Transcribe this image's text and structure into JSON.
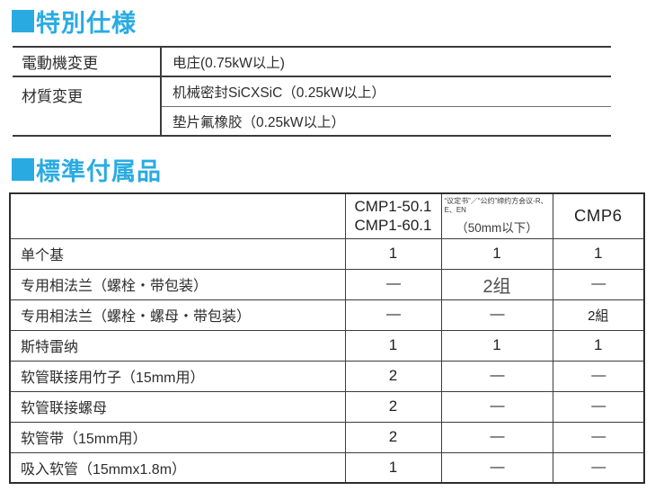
{
  "accent_color": "#29ABE2",
  "special": {
    "title": "特別仕様",
    "rows": [
      {
        "label": "電動機変更",
        "values": [
          "电庄(0.75kW以上)"
        ]
      },
      {
        "label": "材質変更",
        "values": [
          "机械密封SiCXSiC（0.25kW以上）",
          "垫片氟橡胶（0.25kW以上）"
        ]
      }
    ]
  },
  "accessories": {
    "title": "標準付属品",
    "header": {
      "col_item": "",
      "col_cmp1_line1": "CMP1-50.1",
      "col_cmp1_line2": "CMP1-60.1",
      "col_mid_small": "“议定书”／“公约”缔约方会议-R、E、EN",
      "col_mid_sub": "（50mm以下）",
      "col_cmp6": "CMP6"
    },
    "rows": [
      {
        "label": "单个基",
        "values": [
          "1",
          "1",
          "1"
        ]
      },
      {
        "label": "专用相法兰（螺栓・带包装）",
        "values": [
          "—",
          "2组",
          "—"
        ]
      },
      {
        "label": "专用相法兰（螺栓・螺母・带包装）",
        "values": [
          "—",
          "—",
          "2組"
        ]
      },
      {
        "label": "斯特雷纳",
        "values": [
          "1",
          "1",
          "1"
        ]
      },
      {
        "label": "软管联接用竹子（15mm用）",
        "values": [
          "2",
          "—",
          "—"
        ]
      },
      {
        "label": "软管联接螺母",
        "values": [
          "2",
          "—",
          "—"
        ]
      },
      {
        "label": "软管带（15mm用）",
        "values": [
          "2",
          "—",
          "—"
        ]
      },
      {
        "label": "吸入软管（15mmx1.8m）",
        "values": [
          "1",
          "—",
          "—"
        ]
      }
    ]
  }
}
